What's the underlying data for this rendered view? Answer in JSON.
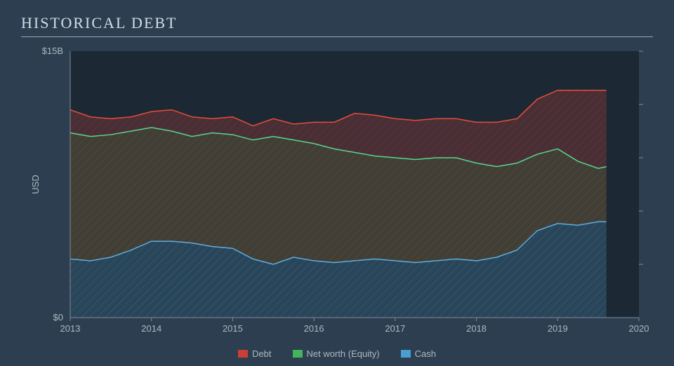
{
  "title": "HISTORICAL DEBT",
  "chart": {
    "type": "area",
    "background_color": "#2c3e50",
    "plot_background_color": "#1c2833",
    "grid_color": "#2c3e50",
    "grid_visible": false,
    "aspect_width": 900,
    "aspect_height": 430,
    "hatch_pattern": "diagonal",
    "hatch_opacity": 0.12,
    "axis_line_color": "#7f8c9a",
    "tick_label_color": "#aeb8c2",
    "tick_label_fontsize": 13,
    "title_fontsize": 22,
    "title_fontfamily": "Georgia, serif",
    "title_letter_spacing": 2,
    "y_axis": {
      "label": "USD",
      "label_fontsize": 13,
      "min": 0,
      "max": 15,
      "ticks": [
        {
          "value": 0,
          "label": "$0"
        },
        {
          "value": 15,
          "label": "$15B"
        }
      ],
      "right_marks": [
        3,
        6,
        9,
        12,
        15
      ]
    },
    "x_axis": {
      "min": 2013,
      "max": 2020,
      "ticks": [
        {
          "value": 2013,
          "label": "2013"
        },
        {
          "value": 2014,
          "label": "2014"
        },
        {
          "value": 2015,
          "label": "2015"
        },
        {
          "value": 2016,
          "label": "2016"
        },
        {
          "value": 2017,
          "label": "2017"
        },
        {
          "value": 2018,
          "label": "2018"
        },
        {
          "value": 2019,
          "label": "2019"
        },
        {
          "value": 2020,
          "label": "2020"
        }
      ]
    },
    "x_values": [
      2013.0,
      2013.25,
      2013.5,
      2013.75,
      2014.0,
      2014.25,
      2014.5,
      2014.75,
      2015.0,
      2015.25,
      2015.5,
      2015.75,
      2016.0,
      2016.25,
      2016.5,
      2016.75,
      2017.0,
      2017.25,
      2017.5,
      2017.75,
      2018.0,
      2018.25,
      2018.5,
      2018.75,
      2019.0,
      2019.25,
      2019.5,
      2019.6
    ],
    "series": [
      {
        "name": "Cash",
        "legend_label": "Cash",
        "line_color": "#5dade2",
        "line_width": 1.5,
        "fill_color": "#5dade2",
        "fill_opacity": 0.22,
        "hatch_color": "#7fb8dd",
        "values": [
          3.3,
          3.2,
          3.4,
          3.8,
          4.3,
          4.3,
          4.2,
          4.0,
          3.9,
          3.3,
          3.0,
          3.4,
          3.2,
          3.1,
          3.2,
          3.3,
          3.2,
          3.1,
          3.2,
          3.3,
          3.2,
          3.4,
          3.8,
          4.9,
          5.3,
          5.2,
          5.4,
          5.4
        ]
      },
      {
        "name": "Net worth (Equity)",
        "legend_label": "Net worth (Equity)",
        "line_color": "#58d68d",
        "line_width": 1.5,
        "fill_color": "#a07b3f",
        "fill_opacity": 0.28,
        "hatch_color": "#b08a4f",
        "values": [
          10.4,
          10.2,
          10.3,
          10.5,
          10.7,
          10.5,
          10.2,
          10.4,
          10.3,
          10.0,
          10.2,
          10.0,
          9.8,
          9.5,
          9.3,
          9.1,
          9.0,
          8.9,
          9.0,
          9.0,
          8.7,
          8.5,
          8.7,
          9.2,
          9.5,
          8.8,
          8.4,
          8.5
        ]
      },
      {
        "name": "Debt",
        "legend_label": "Debt",
        "line_color": "#e74c3c",
        "line_width": 1.5,
        "fill_color": "#8e3a3a",
        "fill_opacity": 0.4,
        "hatch_color": "#b04a4a",
        "values": [
          11.7,
          11.3,
          11.2,
          11.3,
          11.6,
          11.7,
          11.3,
          11.2,
          11.3,
          10.8,
          11.2,
          10.9,
          11.0,
          11.0,
          11.5,
          11.4,
          11.2,
          11.1,
          11.2,
          11.2,
          11.0,
          11.0,
          11.2,
          12.3,
          12.8,
          12.8,
          12.8,
          12.8
        ]
      }
    ],
    "legend": {
      "position": "bottom",
      "items": [
        {
          "label": "Debt",
          "color": "#cb3f34"
        },
        {
          "label": "Net worth (Equity)",
          "color": "#43b55a"
        },
        {
          "label": "Cash",
          "color": "#4a9fd0"
        }
      ]
    }
  }
}
